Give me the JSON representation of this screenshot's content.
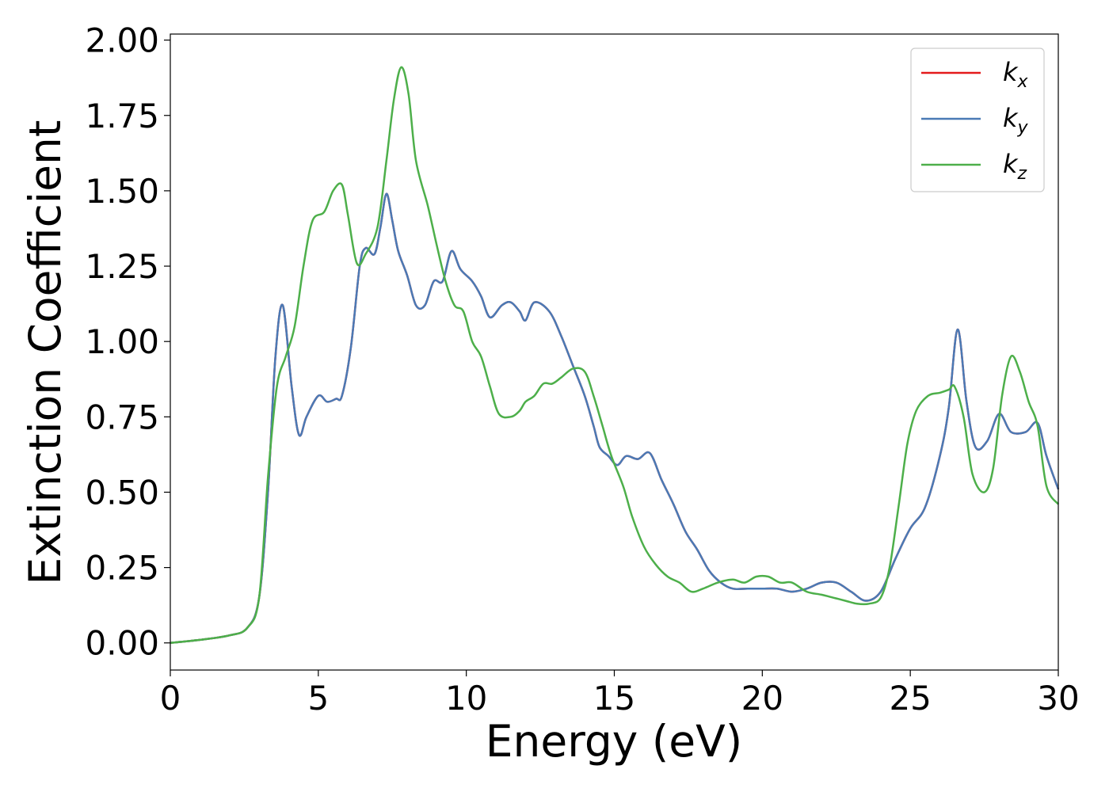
{
  "chart_data": {
    "type": "line",
    "title": "",
    "xlabel": "Energy (eV)",
    "ylabel": "Extinction Coefficient",
    "xlim": [
      0,
      30
    ],
    "ylim": [
      -0.09,
      2.02
    ],
    "xticks": [
      0,
      5,
      10,
      15,
      20,
      25,
      30
    ],
    "xtick_labels": [
      "0",
      "5",
      "10",
      "15",
      "20",
      "25",
      "30"
    ],
    "yticks": [
      0.0,
      0.25,
      0.5,
      0.75,
      1.0,
      1.25,
      1.5,
      1.75,
      2.0
    ],
    "ytick_labels": [
      "0.00",
      "0.25",
      "0.50",
      "0.75",
      "1.00",
      "1.25",
      "1.50",
      "1.75",
      "2.00"
    ],
    "grid": false,
    "legend_position": "top-right",
    "series": [
      {
        "name": "k",
        "subscript": "x",
        "color": "#e41a1c",
        "points": [
          [
            0,
            0
          ],
          [
            1,
            0.01
          ],
          [
            2,
            0.025
          ],
          [
            2.6,
            0.05
          ],
          [
            3,
            0.15
          ],
          [
            3.3,
            0.5
          ],
          [
            3.55,
            0.95
          ],
          [
            3.8,
            1.12
          ],
          [
            4.1,
            0.85
          ],
          [
            4.35,
            0.69
          ],
          [
            4.6,
            0.75
          ],
          [
            5,
            0.82
          ],
          [
            5.3,
            0.8
          ],
          [
            5.6,
            0.81
          ],
          [
            5.8,
            0.82
          ],
          [
            6.1,
            0.98
          ],
          [
            6.4,
            1.25
          ],
          [
            6.6,
            1.31
          ],
          [
            6.9,
            1.29
          ],
          [
            7.1,
            1.38
          ],
          [
            7.3,
            1.49
          ],
          [
            7.5,
            1.4
          ],
          [
            7.7,
            1.3
          ],
          [
            8,
            1.22
          ],
          [
            8.3,
            1.12
          ],
          [
            8.6,
            1.12
          ],
          [
            8.9,
            1.2
          ],
          [
            9.2,
            1.2
          ],
          [
            9.5,
            1.3
          ],
          [
            9.8,
            1.24
          ],
          [
            10.2,
            1.2
          ],
          [
            10.5,
            1.15
          ],
          [
            10.8,
            1.08
          ],
          [
            11.2,
            1.12
          ],
          [
            11.5,
            1.13
          ],
          [
            11.8,
            1.1
          ],
          [
            12,
            1.07
          ],
          [
            12.3,
            1.13
          ],
          [
            12.8,
            1.1
          ],
          [
            13.2,
            1.02
          ],
          [
            13.6,
            0.92
          ],
          [
            14,
            0.82
          ],
          [
            14.3,
            0.72
          ],
          [
            14.5,
            0.65
          ],
          [
            14.8,
            0.62
          ],
          [
            15.1,
            0.59
          ],
          [
            15.4,
            0.62
          ],
          [
            15.8,
            0.61
          ],
          [
            16.2,
            0.63
          ],
          [
            16.6,
            0.54
          ],
          [
            17,
            0.46
          ],
          [
            17.4,
            0.37
          ],
          [
            17.8,
            0.31
          ],
          [
            18.2,
            0.24
          ],
          [
            18.6,
            0.2
          ],
          [
            19,
            0.18
          ],
          [
            19.5,
            0.18
          ],
          [
            20,
            0.18
          ],
          [
            20.5,
            0.18
          ],
          [
            21,
            0.17
          ],
          [
            21.5,
            0.18
          ],
          [
            22,
            0.2
          ],
          [
            22.5,
            0.2
          ],
          [
            23,
            0.17
          ],
          [
            23.5,
            0.14
          ],
          [
            24,
            0.17
          ],
          [
            24.5,
            0.28
          ],
          [
            25,
            0.38
          ],
          [
            25.5,
            0.45
          ],
          [
            26,
            0.62
          ],
          [
            26.3,
            0.78
          ],
          [
            26.6,
            1.04
          ],
          [
            26.9,
            0.8
          ],
          [
            27.2,
            0.65
          ],
          [
            27.6,
            0.67
          ],
          [
            28,
            0.76
          ],
          [
            28.4,
            0.7
          ],
          [
            28.9,
            0.7
          ],
          [
            29.3,
            0.73
          ],
          [
            29.6,
            0.62
          ],
          [
            30,
            0.51
          ]
        ]
      },
      {
        "name": "k",
        "subscript": "y",
        "color": "#4a7ab5",
        "points": [
          [
            0,
            0
          ],
          [
            1,
            0.01
          ],
          [
            2,
            0.025
          ],
          [
            2.6,
            0.05
          ],
          [
            3,
            0.15
          ],
          [
            3.3,
            0.5
          ],
          [
            3.55,
            0.95
          ],
          [
            3.8,
            1.12
          ],
          [
            4.1,
            0.85
          ],
          [
            4.35,
            0.69
          ],
          [
            4.6,
            0.75
          ],
          [
            5,
            0.82
          ],
          [
            5.3,
            0.8
          ],
          [
            5.6,
            0.81
          ],
          [
            5.8,
            0.82
          ],
          [
            6.1,
            0.98
          ],
          [
            6.4,
            1.25
          ],
          [
            6.6,
            1.31
          ],
          [
            6.9,
            1.29
          ],
          [
            7.1,
            1.38
          ],
          [
            7.3,
            1.49
          ],
          [
            7.5,
            1.4
          ],
          [
            7.7,
            1.3
          ],
          [
            8,
            1.22
          ],
          [
            8.3,
            1.12
          ],
          [
            8.6,
            1.12
          ],
          [
            8.9,
            1.2
          ],
          [
            9.2,
            1.2
          ],
          [
            9.5,
            1.3
          ],
          [
            9.8,
            1.24
          ],
          [
            10.2,
            1.2
          ],
          [
            10.5,
            1.15
          ],
          [
            10.8,
            1.08
          ],
          [
            11.2,
            1.12
          ],
          [
            11.5,
            1.13
          ],
          [
            11.8,
            1.1
          ],
          [
            12,
            1.07
          ],
          [
            12.3,
            1.13
          ],
          [
            12.8,
            1.1
          ],
          [
            13.2,
            1.02
          ],
          [
            13.6,
            0.92
          ],
          [
            14,
            0.82
          ],
          [
            14.3,
            0.72
          ],
          [
            14.5,
            0.65
          ],
          [
            14.8,
            0.62
          ],
          [
            15.1,
            0.59
          ],
          [
            15.4,
            0.62
          ],
          [
            15.8,
            0.61
          ],
          [
            16.2,
            0.63
          ],
          [
            16.6,
            0.54
          ],
          [
            17,
            0.46
          ],
          [
            17.4,
            0.37
          ],
          [
            17.8,
            0.31
          ],
          [
            18.2,
            0.24
          ],
          [
            18.6,
            0.2
          ],
          [
            19,
            0.18
          ],
          [
            19.5,
            0.18
          ],
          [
            20,
            0.18
          ],
          [
            20.5,
            0.18
          ],
          [
            21,
            0.17
          ],
          [
            21.5,
            0.18
          ],
          [
            22,
            0.2
          ],
          [
            22.5,
            0.2
          ],
          [
            23,
            0.17
          ],
          [
            23.5,
            0.14
          ],
          [
            24,
            0.17
          ],
          [
            24.5,
            0.28
          ],
          [
            25,
            0.38
          ],
          [
            25.5,
            0.45
          ],
          [
            26,
            0.62
          ],
          [
            26.3,
            0.78
          ],
          [
            26.6,
            1.04
          ],
          [
            26.9,
            0.8
          ],
          [
            27.2,
            0.65
          ],
          [
            27.6,
            0.67
          ],
          [
            28,
            0.76
          ],
          [
            28.4,
            0.7
          ],
          [
            28.9,
            0.7
          ],
          [
            29.3,
            0.73
          ],
          [
            29.6,
            0.62
          ],
          [
            30,
            0.51
          ]
        ]
      },
      {
        "name": "k",
        "subscript": "z",
        "color": "#4daf4a",
        "points": [
          [
            0,
            0
          ],
          [
            1,
            0.01
          ],
          [
            2,
            0.025
          ],
          [
            2.6,
            0.05
          ],
          [
            3,
            0.15
          ],
          [
            3.3,
            0.55
          ],
          [
            3.6,
            0.85
          ],
          [
            3.9,
            0.95
          ],
          [
            4.2,
            1.05
          ],
          [
            4.5,
            1.25
          ],
          [
            4.8,
            1.4
          ],
          [
            5.2,
            1.43
          ],
          [
            5.5,
            1.5
          ],
          [
            5.8,
            1.52
          ],
          [
            6,
            1.42
          ],
          [
            6.3,
            1.26
          ],
          [
            6.6,
            1.29
          ],
          [
            7,
            1.38
          ],
          [
            7.3,
            1.6
          ],
          [
            7.55,
            1.8
          ],
          [
            7.8,
            1.91
          ],
          [
            8.05,
            1.82
          ],
          [
            8.3,
            1.6
          ],
          [
            8.7,
            1.45
          ],
          [
            9,
            1.32
          ],
          [
            9.3,
            1.2
          ],
          [
            9.6,
            1.12
          ],
          [
            9.9,
            1.1
          ],
          [
            10.2,
            1.0
          ],
          [
            10.5,
            0.95
          ],
          [
            10.8,
            0.85
          ],
          [
            11.1,
            0.76
          ],
          [
            11.5,
            0.75
          ],
          [
            11.8,
            0.77
          ],
          [
            12,
            0.8
          ],
          [
            12.3,
            0.82
          ],
          [
            12.6,
            0.86
          ],
          [
            12.9,
            0.86
          ],
          [
            13.2,
            0.88
          ],
          [
            13.6,
            0.91
          ],
          [
            14,
            0.9
          ],
          [
            14.3,
            0.82
          ],
          [
            14.6,
            0.72
          ],
          [
            14.9,
            0.62
          ],
          [
            15.3,
            0.52
          ],
          [
            15.6,
            0.42
          ],
          [
            16,
            0.32
          ],
          [
            16.4,
            0.26
          ],
          [
            16.8,
            0.22
          ],
          [
            17.2,
            0.2
          ],
          [
            17.6,
            0.17
          ],
          [
            18,
            0.18
          ],
          [
            18.5,
            0.2
          ],
          [
            19,
            0.21
          ],
          [
            19.4,
            0.2
          ],
          [
            19.8,
            0.22
          ],
          [
            20.2,
            0.22
          ],
          [
            20.6,
            0.2
          ],
          [
            21,
            0.2
          ],
          [
            21.5,
            0.17
          ],
          [
            22,
            0.16
          ],
          [
            22.4,
            0.15
          ],
          [
            22.8,
            0.14
          ],
          [
            23.2,
            0.13
          ],
          [
            23.6,
            0.13
          ],
          [
            24,
            0.15
          ],
          [
            24.3,
            0.25
          ],
          [
            24.6,
            0.45
          ],
          [
            24.9,
            0.66
          ],
          [
            25.2,
            0.77
          ],
          [
            25.6,
            0.82
          ],
          [
            26,
            0.83
          ],
          [
            26.3,
            0.84
          ],
          [
            26.5,
            0.85
          ],
          [
            26.8,
            0.75
          ],
          [
            27.1,
            0.56
          ],
          [
            27.5,
            0.5
          ],
          [
            27.8,
            0.58
          ],
          [
            28.1,
            0.82
          ],
          [
            28.4,
            0.95
          ],
          [
            28.7,
            0.9
          ],
          [
            29,
            0.8
          ],
          [
            29.3,
            0.72
          ],
          [
            29.6,
            0.52
          ],
          [
            30,
            0.46
          ]
        ]
      }
    ]
  }
}
